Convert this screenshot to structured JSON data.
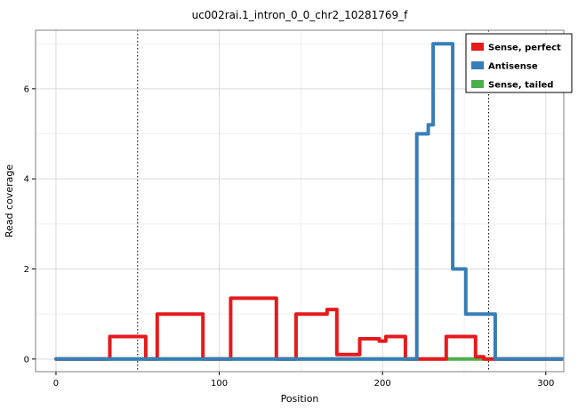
{
  "chart_data": {
    "type": "line",
    "title": "uc002rai.1_intron_0_0_chr2_10281769_f",
    "xlabel": "Position",
    "ylabel": "Read coverage",
    "x_ticks": [
      0,
      100,
      200,
      300
    ],
    "x_minor_ticks": [
      50,
      150,
      250
    ],
    "y_ticks": [
      0,
      2,
      4,
      6
    ],
    "y_minor_ticks": [
      1,
      3,
      5,
      7
    ],
    "xlim": [
      -12.5,
      311
    ],
    "ylim": [
      -0.28,
      7.3
    ],
    "dotted_vlines": [
      50,
      265
    ],
    "grid": true,
    "legend_position": "top-right",
    "colors": {
      "major_grid": "#d9d9d9",
      "minor_grid": "#efefef",
      "panel_border": "#969696",
      "vline": "#000000",
      "text": "#000000"
    },
    "series": [
      {
        "name": "Sense, tailed",
        "color": "#4DAF4A",
        "points": [
          [
            0,
            0
          ],
          [
            310,
            0
          ]
        ]
      },
      {
        "name": "Sense, perfect",
        "color": "#E41A1C",
        "points": [
          [
            0,
            0
          ],
          [
            33,
            0
          ],
          [
            33,
            0.5
          ],
          [
            55,
            0.5
          ],
          [
            55,
            0
          ],
          [
            62,
            0
          ],
          [
            62,
            1
          ],
          [
            90,
            1
          ],
          [
            90,
            0
          ],
          [
            107,
            0
          ],
          [
            107,
            1.35
          ],
          [
            135,
            1.35
          ],
          [
            135,
            0
          ],
          [
            147,
            0
          ],
          [
            147,
            1
          ],
          [
            166,
            1
          ],
          [
            166,
            1.1
          ],
          [
            172,
            1.1
          ],
          [
            172,
            0.1
          ],
          [
            186,
            0.1
          ],
          [
            186,
            0.45
          ],
          [
            198,
            0.45
          ],
          [
            198,
            0.4
          ],
          [
            202,
            0.4
          ],
          [
            202,
            0.5
          ],
          [
            214,
            0.5
          ],
          [
            214,
            0
          ],
          [
            239,
            0
          ],
          [
            239,
            0.5
          ],
          [
            257,
            0.5
          ],
          [
            257,
            0.05
          ],
          [
            262,
            0.05
          ],
          [
            262,
            0
          ],
          [
            310,
            0
          ]
        ]
      },
      {
        "name": "Antisense",
        "color": "#377EB8",
        "points": [
          [
            0,
            0
          ],
          [
            221,
            0
          ],
          [
            221,
            5
          ],
          [
            228,
            5
          ],
          [
            228,
            5.2
          ],
          [
            231,
            5.2
          ],
          [
            231,
            7
          ],
          [
            243,
            7
          ],
          [
            243,
            2
          ],
          [
            251,
            2
          ],
          [
            251,
            1
          ],
          [
            269,
            1
          ],
          [
            269,
            0
          ],
          [
            310,
            0
          ]
        ]
      }
    ],
    "legend_order": [
      "Sense, perfect",
      "Antisense",
      "Sense, tailed"
    ]
  }
}
